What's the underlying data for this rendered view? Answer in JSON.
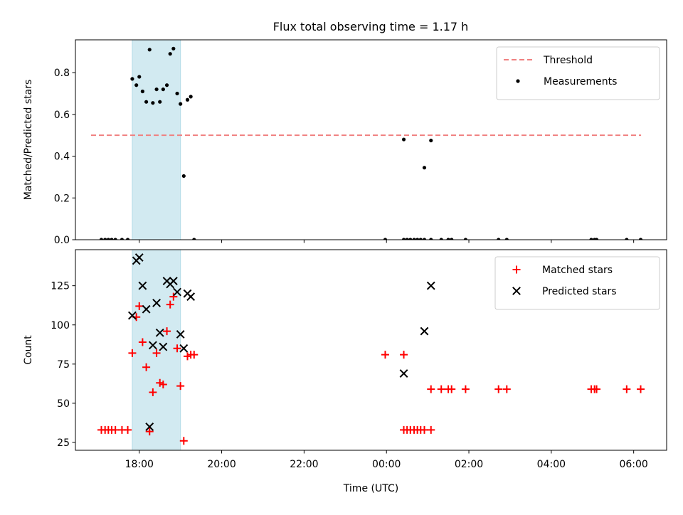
{
  "title": "Flux total observing time = 1.17 h",
  "chart_data": [
    {
      "type": "scatter",
      "ylabel": "Matched/Predicted stars",
      "ylim": [
        0,
        0.957
      ],
      "yticks": [
        0.0,
        0.2,
        0.4,
        0.6,
        0.8
      ],
      "ytick_labels": [
        "0.0",
        "0.2",
        "0.4",
        "0.6",
        "0.8"
      ],
      "xlim": [
        16.45,
        30.8
      ],
      "shaded_span": [
        17.83,
        19.0
      ],
      "shade_color": "#add8e6",
      "threshold": {
        "name": "Threshold",
        "y": 0.5,
        "x_range": [
          16.83,
          30.18
        ],
        "color": "#f08080"
      },
      "legend_position": "top-right",
      "series": [
        {
          "name": "Measurements",
          "color": "#000000",
          "points": [
            [
              17.08,
              0
            ],
            [
              17.17,
              0
            ],
            [
              17.25,
              0
            ],
            [
              17.33,
              0
            ],
            [
              17.42,
              0
            ],
            [
              17.58,
              0
            ],
            [
              17.72,
              0
            ],
            [
              17.83,
              0.77
            ],
            [
              17.93,
              0.74
            ],
            [
              18.0,
              0.78
            ],
            [
              18.08,
              0.71
            ],
            [
              18.17,
              0.66
            ],
            [
              18.25,
              0.91
            ],
            [
              18.33,
              0.655
            ],
            [
              18.42,
              0.72
            ],
            [
              18.5,
              0.66
            ],
            [
              18.58,
              0.72
            ],
            [
              18.67,
              0.74
            ],
            [
              18.75,
              0.89
            ],
            [
              18.83,
              0.915
            ],
            [
              18.92,
              0.7
            ],
            [
              19.0,
              0.65
            ],
            [
              19.08,
              0.305
            ],
            [
              19.17,
              0.67
            ],
            [
              19.25,
              0.685
            ],
            [
              19.33,
              0
            ],
            [
              23.97,
              0
            ],
            [
              24.42,
              0.48
            ],
            [
              24.42,
              0
            ],
            [
              24.5,
              0
            ],
            [
              24.58,
              0
            ],
            [
              24.67,
              0
            ],
            [
              24.75,
              0
            ],
            [
              24.83,
              0
            ],
            [
              24.92,
              0.345
            ],
            [
              24.92,
              0
            ],
            [
              25.08,
              0.475
            ],
            [
              25.08,
              0
            ],
            [
              25.33,
              0
            ],
            [
              25.5,
              0
            ],
            [
              25.58,
              0
            ],
            [
              25.92,
              0
            ],
            [
              26.72,
              0
            ],
            [
              26.92,
              0
            ],
            [
              28.97,
              0
            ],
            [
              29.05,
              0
            ],
            [
              29.1,
              0
            ],
            [
              29.83,
              0
            ],
            [
              30.17,
              0
            ]
          ]
        }
      ]
    },
    {
      "type": "scatter",
      "xlabel": "Time (UTC)",
      "ylabel": "Count",
      "ylim": [
        20,
        148
      ],
      "yticks": [
        25,
        50,
        75,
        100,
        125
      ],
      "ytick_labels": [
        "25",
        "50",
        "75",
        "100",
        "125"
      ],
      "xlim": [
        16.45,
        30.8
      ],
      "xticks": [
        18,
        20,
        22,
        24,
        26,
        28,
        30
      ],
      "xtick_labels": [
        "18:00",
        "20:00",
        "22:00",
        "00:00",
        "02:00",
        "04:00",
        "06:00"
      ],
      "shaded_span": [
        17.83,
        19.0
      ],
      "shade_color": "#add8e6",
      "legend_position": "top-right",
      "series": [
        {
          "name": "Matched stars",
          "marker": "plus",
          "color": "#ff0000",
          "points": [
            [
              17.08,
              33
            ],
            [
              17.17,
              33
            ],
            [
              17.25,
              33
            ],
            [
              17.33,
              33
            ],
            [
              17.42,
              33
            ],
            [
              17.58,
              33
            ],
            [
              17.72,
              33
            ],
            [
              17.83,
              82
            ],
            [
              17.93,
              105
            ],
            [
              18.0,
              112
            ],
            [
              18.08,
              89
            ],
            [
              18.17,
              73
            ],
            [
              18.25,
              32
            ],
            [
              18.33,
              57
            ],
            [
              18.42,
              82
            ],
            [
              18.5,
              63
            ],
            [
              18.58,
              62
            ],
            [
              18.67,
              96
            ],
            [
              18.75,
              113
            ],
            [
              18.83,
              118
            ],
            [
              18.92,
              85
            ],
            [
              19.0,
              61
            ],
            [
              19.08,
              26
            ],
            [
              19.17,
              80
            ],
            [
              19.25,
              81
            ],
            [
              19.33,
              81
            ],
            [
              23.97,
              81
            ],
            [
              24.42,
              81
            ],
            [
              24.42,
              33
            ],
            [
              24.5,
              33
            ],
            [
              24.58,
              33
            ],
            [
              24.67,
              33
            ],
            [
              24.75,
              33
            ],
            [
              24.83,
              33
            ],
            [
              24.92,
              33
            ],
            [
              25.08,
              33
            ],
            [
              25.08,
              59
            ],
            [
              25.33,
              59
            ],
            [
              25.5,
              59
            ],
            [
              25.58,
              59
            ],
            [
              25.92,
              59
            ],
            [
              26.72,
              59
            ],
            [
              26.92,
              59
            ],
            [
              28.97,
              59
            ],
            [
              29.05,
              59
            ],
            [
              29.1,
              59
            ],
            [
              29.83,
              59
            ],
            [
              30.17,
              59
            ]
          ]
        },
        {
          "name": "Predicted stars",
          "marker": "x",
          "color": "#000000",
          "points": [
            [
              17.83,
              106
            ],
            [
              17.93,
              141
            ],
            [
              18.0,
              143
            ],
            [
              18.08,
              125
            ],
            [
              18.17,
              110
            ],
            [
              18.25,
              35
            ],
            [
              18.33,
              87
            ],
            [
              18.42,
              114
            ],
            [
              18.5,
              95
            ],
            [
              18.58,
              86
            ],
            [
              18.67,
              128
            ],
            [
              18.75,
              126
            ],
            [
              18.83,
              128
            ],
            [
              18.92,
              121
            ],
            [
              19.0,
              94
            ],
            [
              19.08,
              85
            ],
            [
              19.17,
              120
            ],
            [
              19.25,
              118
            ],
            [
              24.42,
              69
            ],
            [
              24.92,
              96
            ],
            [
              25.08,
              125
            ]
          ]
        }
      ]
    }
  ]
}
